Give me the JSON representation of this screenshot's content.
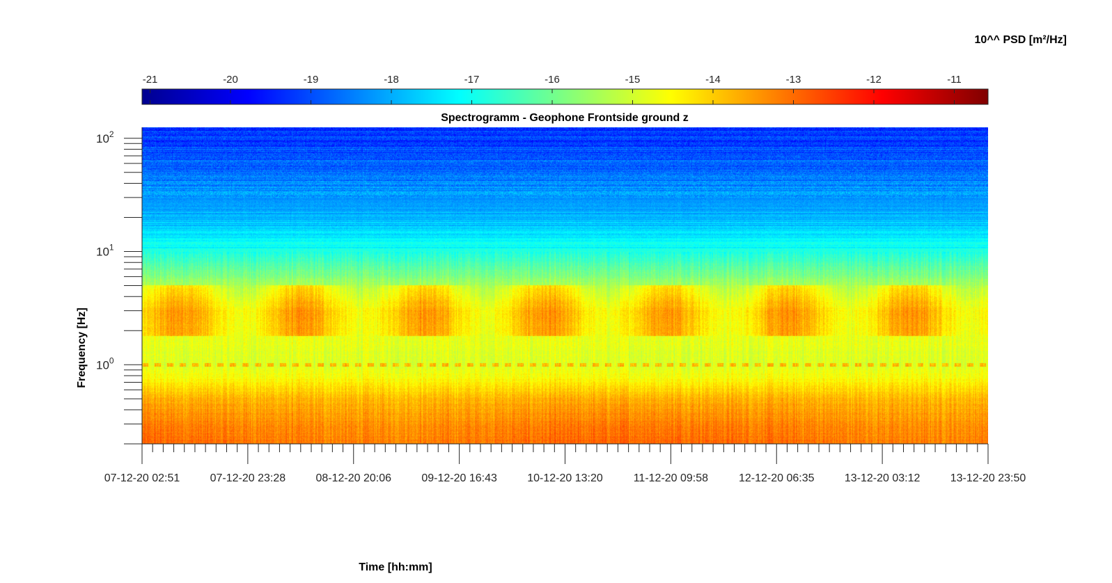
{
  "chart_data": {
    "type": "heatmap",
    "title": "Spectrogramm - Geophone Frontside ground z",
    "xlabel": "Time [hh:mm]",
    "ylabel": "Frequency [Hz]",
    "x_tick_labels": [
      "07-12-20 02:51",
      "07-12-20 23:28",
      "08-12-20 20:06",
      "09-12-20 16:43",
      "10-12-20 13:20",
      "11-12-20 09:58",
      "12-12-20 06:35",
      "13-12-20 03:12",
      "13-12-20 23:50"
    ],
    "y_scale": "log",
    "y_tick_labels": [
      {
        "value": 1,
        "base": "10",
        "exp": "0"
      },
      {
        "value": 10,
        "base": "10",
        "exp": "1"
      },
      {
        "value": 100,
        "base": "10",
        "exp": "2"
      }
    ],
    "ylim": [
      0.2,
      125
    ],
    "colorbar": {
      "label": "10^^ PSD [m²/Hz]",
      "ticks": [
        "-21",
        "-20",
        "-19",
        "-18",
        "-17",
        "-16",
        "-15",
        "-14",
        "-13",
        "-12",
        "-11"
      ],
      "range": [
        -21.1,
        -10.58
      ],
      "colormap": "jet"
    },
    "psd_profile": [
      {
        "freq": 0.2,
        "log10_psd": -13.2
      },
      {
        "freq": 0.3,
        "log10_psd": -13.4
      },
      {
        "freq": 0.5,
        "log10_psd": -13.8
      },
      {
        "freq": 0.7,
        "log10_psd": -14.4
      },
      {
        "freq": 1.0,
        "log10_psd": -14.9
      },
      {
        "freq": 3.0,
        "log10_psd": -14.6
      },
      {
        "freq": 5.0,
        "log10_psd": -15.4
      },
      {
        "freq": 10.0,
        "log10_psd": -16.9
      },
      {
        "freq": 20.0,
        "log10_psd": -17.9
      },
      {
        "freq": 50.0,
        "log10_psd": -18.6
      },
      {
        "freq": 125.0,
        "log10_psd": -19.3
      }
    ]
  }
}
